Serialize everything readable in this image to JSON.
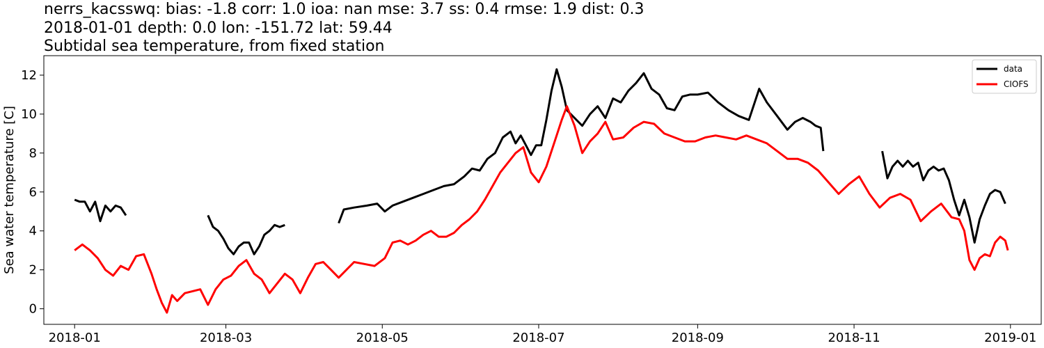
{
  "titles": {
    "line1": "nerrs_kacsswq: bias: -1.8  corr: 1.0  ioa: nan  mse: 3.7  ss: 0.4  rmse: 1.9  dist: 0.3",
    "line2": "2018-01-01 depth: 0.0 lon: -151.72 lat: 59.44",
    "line3": "Subtidal sea temperature, from fixed station"
  },
  "chart_data": {
    "type": "line",
    "title": "Subtidal sea temperature, from fixed station",
    "xlabel": "",
    "ylabel": "Sea water temperature [C]",
    "xlim": [
      "2017-12-20",
      "2019-01-13"
    ],
    "ylim": [
      -0.8,
      13.0
    ],
    "xticks": [
      "2018-01",
      "2018-03",
      "2018-05",
      "2018-07",
      "2018-09",
      "2018-11",
      "2019-01"
    ],
    "yticks": [
      0,
      2,
      4,
      6,
      8,
      10,
      12
    ],
    "grid": false,
    "legend": "top-right",
    "series": [
      {
        "name": "data",
        "color": "#000000",
        "segments": [
          [
            [
              "2018-01-01",
              5.6
            ],
            [
              "2018-01-03",
              5.5
            ],
            [
              "2018-01-05",
              5.5
            ],
            [
              "2018-01-07",
              5.0
            ],
            [
              "2018-01-09",
              5.5
            ],
            [
              "2018-01-11",
              4.5
            ],
            [
              "2018-01-13",
              5.3
            ],
            [
              "2018-01-15",
              5.0
            ],
            [
              "2018-01-17",
              5.3
            ],
            [
              "2018-01-19",
              5.2
            ],
            [
              "2018-01-21",
              4.8
            ]
          ],
          [
            [
              "2018-02-22",
              4.8
            ],
            [
              "2018-02-24",
              4.2
            ],
            [
              "2018-02-26",
              4.0
            ],
            [
              "2018-02-28",
              3.6
            ],
            [
              "2018-03-02",
              3.1
            ],
            [
              "2018-03-04",
              2.8
            ],
            [
              "2018-03-06",
              3.2
            ],
            [
              "2018-03-08",
              3.4
            ],
            [
              "2018-03-10",
              3.4
            ],
            [
              "2018-03-12",
              2.8
            ],
            [
              "2018-03-14",
              3.2
            ],
            [
              "2018-03-16",
              3.8
            ],
            [
              "2018-03-18",
              4.0
            ],
            [
              "2018-03-20",
              4.3
            ],
            [
              "2018-03-22",
              4.2
            ],
            [
              "2018-03-24",
              4.3
            ]
          ],
          [
            [
              "2018-04-14",
              4.4
            ],
            [
              "2018-04-16",
              5.1
            ],
            [
              "2018-04-20",
              5.2
            ],
            [
              "2018-04-25",
              5.3
            ],
            [
              "2018-04-29",
              5.4
            ],
            [
              "2018-05-02",
              5.0
            ],
            [
              "2018-05-05",
              5.3
            ],
            [
              "2018-05-09",
              5.5
            ],
            [
              "2018-05-13",
              5.7
            ],
            [
              "2018-05-17",
              5.9
            ],
            [
              "2018-05-21",
              6.1
            ],
            [
              "2018-05-25",
              6.3
            ],
            [
              "2018-05-29",
              6.4
            ],
            [
              "2018-06-02",
              6.8
            ],
            [
              "2018-06-05",
              7.2
            ],
            [
              "2018-06-08",
              7.1
            ],
            [
              "2018-06-11",
              7.7
            ],
            [
              "2018-06-14",
              8.0
            ],
            [
              "2018-06-17",
              8.8
            ],
            [
              "2018-06-20",
              9.1
            ],
            [
              "2018-06-22",
              8.5
            ],
            [
              "2018-06-24",
              8.9
            ],
            [
              "2018-06-26",
              8.4
            ],
            [
              "2018-06-28",
              7.9
            ],
            [
              "2018-06-30",
              8.4
            ],
            [
              "2018-07-02",
              8.4
            ],
            [
              "2018-07-04",
              9.7
            ],
            [
              "2018-07-06",
              11.2
            ],
            [
              "2018-07-08",
              12.3
            ],
            [
              "2018-07-10",
              11.4
            ],
            [
              "2018-07-12",
              10.2
            ],
            [
              "2018-07-15",
              9.8
            ],
            [
              "2018-07-18",
              9.4
            ],
            [
              "2018-07-21",
              10.0
            ],
            [
              "2018-07-24",
              10.4
            ],
            [
              "2018-07-27",
              9.8
            ],
            [
              "2018-07-30",
              10.8
            ],
            [
              "2018-08-02",
              10.6
            ],
            [
              "2018-08-05",
              11.2
            ],
            [
              "2018-08-08",
              11.6
            ],
            [
              "2018-08-11",
              12.1
            ],
            [
              "2018-08-14",
              11.3
            ],
            [
              "2018-08-17",
              11.0
            ],
            [
              "2018-08-20",
              10.3
            ],
            [
              "2018-08-23",
              10.2
            ],
            [
              "2018-08-26",
              10.9
            ],
            [
              "2018-08-29",
              11.0
            ],
            [
              "2018-09-01",
              11.0
            ],
            [
              "2018-09-05",
              11.1
            ],
            [
              "2018-09-09",
              10.6
            ],
            [
              "2018-09-13",
              10.2
            ],
            [
              "2018-09-17",
              9.9
            ],
            [
              "2018-09-21",
              9.7
            ],
            [
              "2018-09-25",
              11.3
            ],
            [
              "2018-09-28",
              10.6
            ],
            [
              "2018-10-02",
              9.9
            ],
            [
              "2018-10-06",
              9.2
            ],
            [
              "2018-10-09",
              9.6
            ],
            [
              "2018-10-12",
              9.8
            ],
            [
              "2018-10-15",
              9.6
            ],
            [
              "2018-10-17",
              9.4
            ],
            [
              "2018-10-19",
              9.3
            ],
            [
              "2018-10-20",
              8.1
            ]
          ],
          [
            [
              "2018-11-12",
              8.1
            ],
            [
              "2018-11-14",
              6.7
            ],
            [
              "2018-11-16",
              7.3
            ],
            [
              "2018-11-18",
              7.6
            ],
            [
              "2018-11-20",
              7.3
            ],
            [
              "2018-11-22",
              7.6
            ],
            [
              "2018-11-24",
              7.3
            ],
            [
              "2018-11-26",
              7.5
            ],
            [
              "2018-11-28",
              6.6
            ],
            [
              "2018-11-30",
              7.1
            ],
            [
              "2018-12-02",
              7.3
            ],
            [
              "2018-12-04",
              7.1
            ],
            [
              "2018-12-06",
              7.2
            ],
            [
              "2018-12-08",
              6.6
            ],
            [
              "2018-12-10",
              5.6
            ],
            [
              "2018-12-12",
              4.8
            ],
            [
              "2018-12-14",
              5.6
            ],
            [
              "2018-12-16",
              4.7
            ],
            [
              "2018-12-18",
              3.4
            ],
            [
              "2018-12-20",
              4.6
            ],
            [
              "2018-12-22",
              5.3
            ],
            [
              "2018-12-24",
              5.9
            ],
            [
              "2018-12-26",
              6.1
            ],
            [
              "2018-12-28",
              6.0
            ],
            [
              "2018-12-30",
              5.4
            ]
          ]
        ]
      },
      {
        "name": "CIOFS",
        "color": "#ff0000",
        "segments": [
          [
            [
              "2018-01-01",
              3.0
            ],
            [
              "2018-01-04",
              3.3
            ],
            [
              "2018-01-07",
              3.0
            ],
            [
              "2018-01-10",
              2.6
            ],
            [
              "2018-01-13",
              2.0
            ],
            [
              "2018-01-16",
              1.7
            ],
            [
              "2018-01-19",
              2.2
            ],
            [
              "2018-01-22",
              2.0
            ],
            [
              "2018-01-25",
              2.7
            ],
            [
              "2018-01-28",
              2.8
            ],
            [
              "2018-01-31",
              1.8
            ],
            [
              "2018-02-02",
              1.0
            ],
            [
              "2018-02-04",
              0.3
            ],
            [
              "2018-02-06",
              -0.2
            ],
            [
              "2018-02-08",
              0.7
            ],
            [
              "2018-02-10",
              0.4
            ],
            [
              "2018-02-13",
              0.8
            ],
            [
              "2018-02-16",
              0.9
            ],
            [
              "2018-02-19",
              1.0
            ],
            [
              "2018-02-22",
              0.2
            ],
            [
              "2018-02-25",
              1.0
            ],
            [
              "2018-02-28",
              1.5
            ],
            [
              "2018-03-03",
              1.7
            ],
            [
              "2018-03-06",
              2.2
            ],
            [
              "2018-03-09",
              2.5
            ],
            [
              "2018-03-12",
              1.8
            ],
            [
              "2018-03-15",
              1.5
            ],
            [
              "2018-03-18",
              0.8
            ],
            [
              "2018-03-21",
              1.3
            ],
            [
              "2018-03-24",
              1.8
            ],
            [
              "2018-03-27",
              1.5
            ],
            [
              "2018-03-30",
              0.8
            ],
            [
              "2018-04-02",
              1.6
            ],
            [
              "2018-04-05",
              2.3
            ],
            [
              "2018-04-08",
              2.4
            ],
            [
              "2018-04-11",
              2.0
            ],
            [
              "2018-04-14",
              1.6
            ],
            [
              "2018-04-17",
              2.0
            ],
            [
              "2018-04-20",
              2.4
            ],
            [
              "2018-04-24",
              2.3
            ],
            [
              "2018-04-28",
              2.2
            ],
            [
              "2018-05-02",
              2.6
            ],
            [
              "2018-05-05",
              3.4
            ],
            [
              "2018-05-08",
              3.5
            ],
            [
              "2018-05-11",
              3.3
            ],
            [
              "2018-05-14",
              3.5
            ],
            [
              "2018-05-17",
              3.8
            ],
            [
              "2018-05-20",
              4.0
            ],
            [
              "2018-05-23",
              3.7
            ],
            [
              "2018-05-26",
              3.7
            ],
            [
              "2018-05-29",
              3.9
            ],
            [
              "2018-06-01",
              4.3
            ],
            [
              "2018-06-04",
              4.6
            ],
            [
              "2018-06-07",
              5.0
            ],
            [
              "2018-06-10",
              5.6
            ],
            [
              "2018-06-13",
              6.3
            ],
            [
              "2018-06-16",
              7.0
            ],
            [
              "2018-06-19",
              7.5
            ],
            [
              "2018-06-22",
              8.0
            ],
            [
              "2018-06-25",
              8.3
            ],
            [
              "2018-06-28",
              7.0
            ],
            [
              "2018-07-01",
              6.5
            ],
            [
              "2018-07-04",
              7.3
            ],
            [
              "2018-07-07",
              8.5
            ],
            [
              "2018-07-10",
              9.7
            ],
            [
              "2018-07-12",
              10.4
            ],
            [
              "2018-07-15",
              9.4
            ],
            [
              "2018-07-18",
              8.0
            ],
            [
              "2018-07-21",
              8.6
            ],
            [
              "2018-07-24",
              9.0
            ],
            [
              "2018-07-27",
              9.6
            ],
            [
              "2018-07-30",
              8.7
            ],
            [
              "2018-08-03",
              8.8
            ],
            [
              "2018-08-07",
              9.3
            ],
            [
              "2018-08-11",
              9.6
            ],
            [
              "2018-08-15",
              9.5
            ],
            [
              "2018-08-19",
              9.0
            ],
            [
              "2018-08-23",
              8.8
            ],
            [
              "2018-08-27",
              8.6
            ],
            [
              "2018-08-31",
              8.6
            ],
            [
              "2018-09-04",
              8.8
            ],
            [
              "2018-09-08",
              8.9
            ],
            [
              "2018-09-12",
              8.8
            ],
            [
              "2018-09-16",
              8.7
            ],
            [
              "2018-09-20",
              8.9
            ],
            [
              "2018-09-24",
              8.7
            ],
            [
              "2018-09-28",
              8.5
            ],
            [
              "2018-10-02",
              8.1
            ],
            [
              "2018-10-06",
              7.7
            ],
            [
              "2018-10-10",
              7.7
            ],
            [
              "2018-10-14",
              7.5
            ],
            [
              "2018-10-18",
              7.1
            ],
            [
              "2018-10-22",
              6.5
            ],
            [
              "2018-10-26",
              5.9
            ],
            [
              "2018-10-30",
              6.4
            ],
            [
              "2018-11-03",
              6.8
            ],
            [
              "2018-11-07",
              5.9
            ],
            [
              "2018-11-11",
              5.2
            ],
            [
              "2018-11-15",
              5.7
            ],
            [
              "2018-11-19",
              5.9
            ],
            [
              "2018-11-23",
              5.6
            ],
            [
              "2018-11-27",
              4.5
            ],
            [
              "2018-12-01",
              5.0
            ],
            [
              "2018-12-05",
              5.4
            ],
            [
              "2018-12-09",
              4.7
            ],
            [
              "2018-12-12",
              4.6
            ],
            [
              "2018-12-14",
              4.0
            ],
            [
              "2018-12-16",
              2.5
            ],
            [
              "2018-12-18",
              2.0
            ],
            [
              "2018-12-20",
              2.6
            ],
            [
              "2018-12-22",
              2.8
            ],
            [
              "2018-12-24",
              2.7
            ],
            [
              "2018-12-26",
              3.4
            ],
            [
              "2018-12-28",
              3.7
            ],
            [
              "2018-12-30",
              3.5
            ],
            [
              "2018-12-31",
              3.0
            ]
          ]
        ]
      }
    ]
  }
}
